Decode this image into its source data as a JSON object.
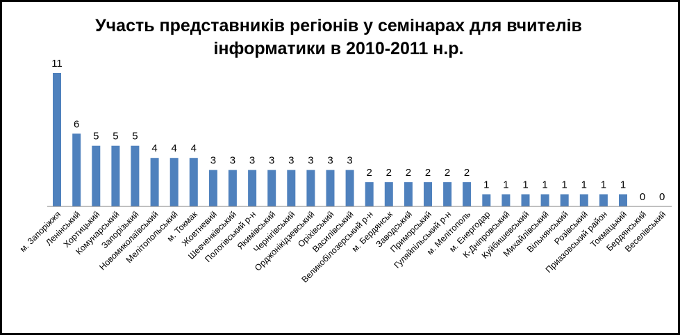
{
  "chart_data": {
    "type": "bar",
    "title_lines": [
      "Участь представників регіонів у семінарах для вчителів",
      "інформатики  в 2010-2011 н.р."
    ],
    "categories": [
      "м. Запоріжжя",
      "Ленінський",
      "Хортицький",
      "Комунарський",
      "Запорізький",
      "Новомиколаївський",
      "Мелітопольський",
      "м. Токмак",
      "Жовтневий",
      "Шевченківський",
      "Пологівський р-н",
      "Якимівський",
      "Чернігівський",
      "Орджонікідзевський",
      "Оріхівський",
      "Василівський",
      "Великобілозерський р-н",
      "м. Бердянськ",
      "Заводський",
      "Приморський",
      "Гуляйпільський р-н",
      "м. Мелітополь",
      "м. Енергодар",
      "К-Дніпровський",
      "Куйбишевський",
      "Михайлівський",
      "Вільнянський",
      "Розівський",
      "Приазовський район",
      "Токмацький",
      "Бердянський",
      "Веселівський"
    ],
    "values": [
      11,
      6,
      5,
      5,
      5,
      4,
      4,
      4,
      3,
      3,
      3,
      3,
      3,
      3,
      3,
      3,
      2,
      2,
      2,
      2,
      2,
      2,
      1,
      1,
      1,
      1,
      1,
      1,
      1,
      1,
      0,
      0
    ],
    "ylim": [
      0,
      11
    ],
    "grid": false,
    "legend": "none",
    "data_labels": true,
    "colors": {
      "bar": "#4f81bd",
      "axis": "#808080",
      "text": "#000000",
      "border": "#000000"
    }
  }
}
